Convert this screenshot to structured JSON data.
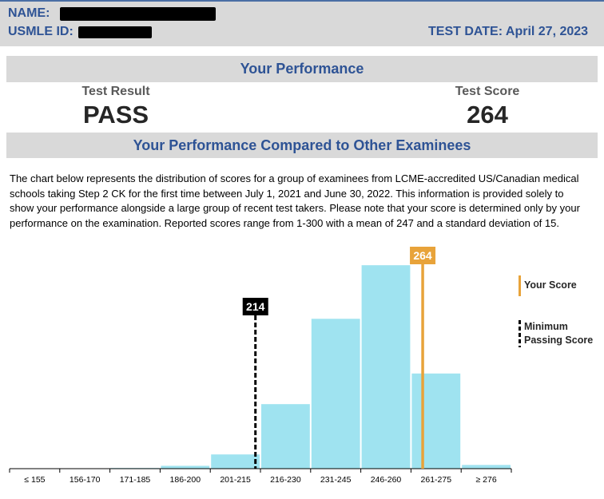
{
  "header": {
    "name_label": "NAME:",
    "usmle_id_label": "USMLE ID:",
    "test_date_label": "TEST DATE:",
    "test_date_value": "April 27, 2023"
  },
  "performance": {
    "title": "Your Performance",
    "result_label": "Test Result",
    "result_value": "PASS",
    "score_label": "Test Score",
    "score_value": "264"
  },
  "comparison": {
    "title": "Your Performance Compared to Other Examinees",
    "description": "The chart below represents the distribution of scores for a group of examinees from LCME-accredited US/Canadian medical schools taking Step 2 CK for the first time between July 1, 2021 and June 30, 2022. This information is provided solely to show your performance alongside a large group of recent test takers. Please note that your score is determined only by your performance on the examination. Reported scores range from 1-300 with a mean of 247 and a standard deviation of 15."
  },
  "legend": {
    "your_score": "Your Score",
    "min_passing": "Minimum Passing Score"
  },
  "colors": {
    "accent_blue": "#2e5395",
    "band_gray": "#d9d9d9",
    "bar": "#9fe3f0",
    "your_score": "#e8a33a",
    "min_pass": "#000000"
  },
  "chart_data": {
    "type": "bar",
    "categories": [
      "≤ 155",
      "156-170",
      "171-185",
      "186-200",
      "201-215",
      "216-230",
      "231-245",
      "246-260",
      "261-275",
      "≥ 276"
    ],
    "values": [
      0.0,
      0.05,
      0.3,
      1.3,
      6.5,
      29.5,
      68.5,
      93.0,
      43.5,
      1.7
    ],
    "ylim": [
      0,
      100
    ],
    "markers": [
      {
        "label": "214",
        "score": 214,
        "kind": "min_pass"
      },
      {
        "label": "264",
        "score": 264,
        "kind": "your_score"
      }
    ],
    "grid": false,
    "legend_position": "right"
  }
}
